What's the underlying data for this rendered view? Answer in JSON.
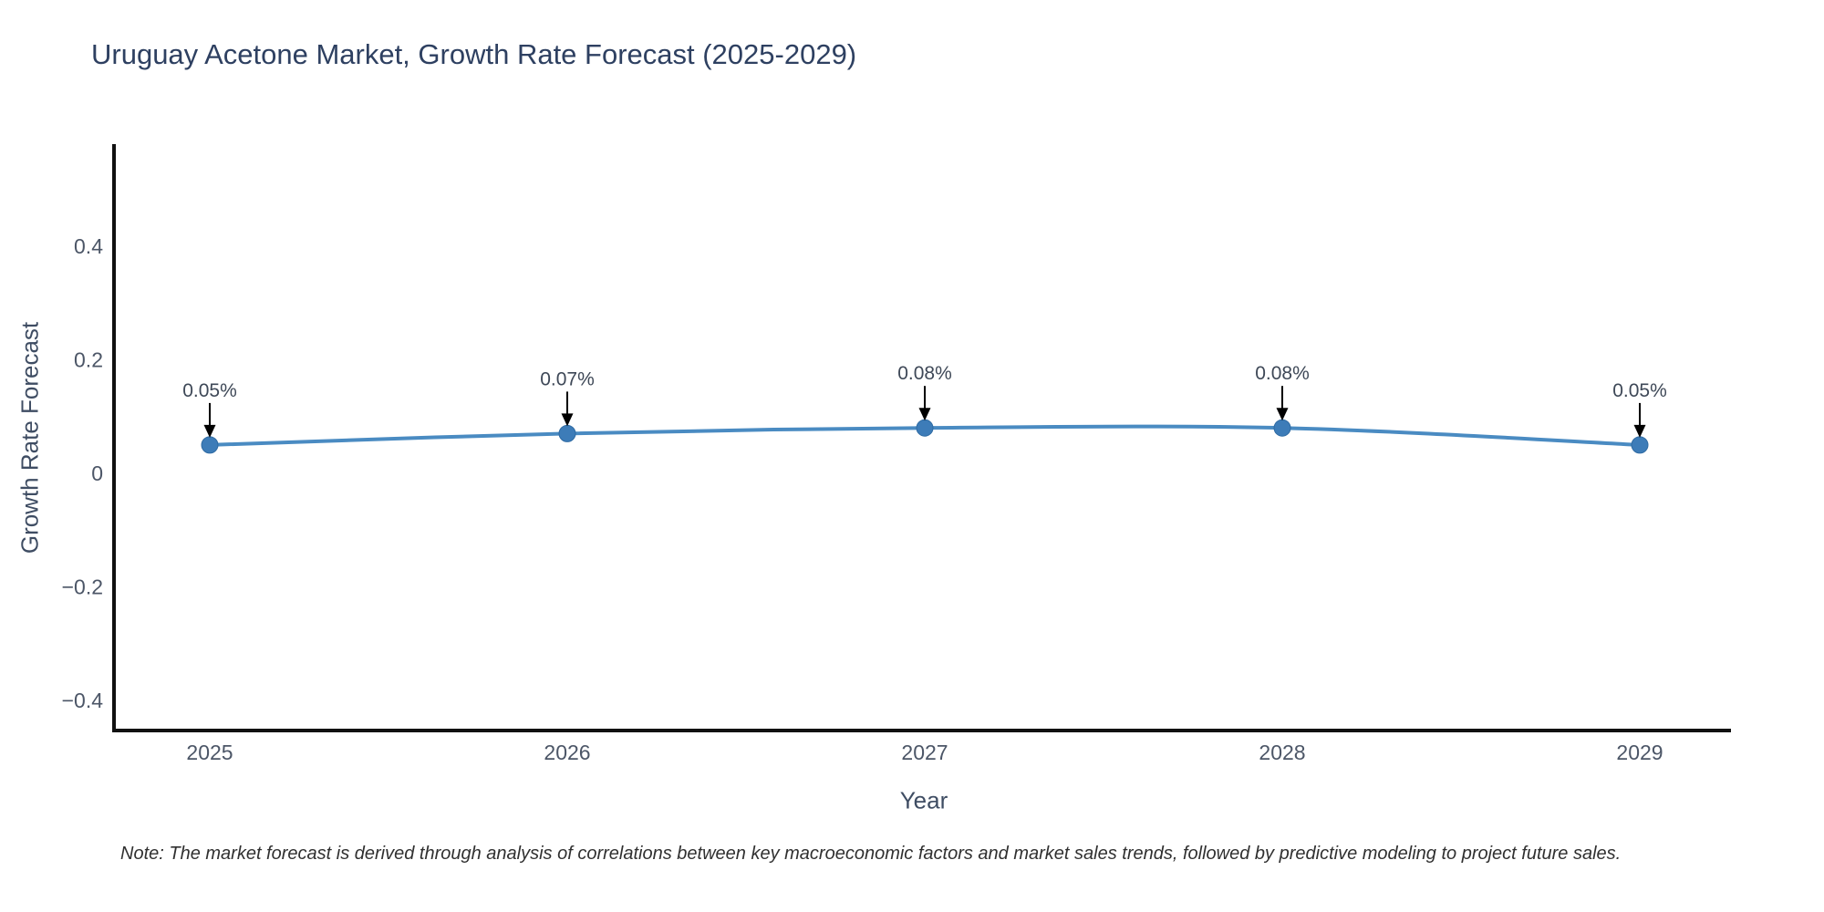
{
  "chart_data": {
    "type": "line",
    "title": "Uruguay Acetone Market, Growth Rate Forecast (2025-2029)",
    "xlabel": "Year",
    "ylabel": "Growth Rate Forecast",
    "x": [
      2025,
      2026,
      2027,
      2028,
      2029
    ],
    "y": [
      0.05,
      0.07,
      0.08,
      0.08,
      0.05
    ],
    "point_labels": [
      "0.05%",
      "0.07%",
      "0.08%",
      "0.08%",
      "0.05%"
    ],
    "xtick_labels": [
      "2025",
      "2026",
      "2027",
      "2028",
      "2029"
    ],
    "yticks": [
      0.4,
      0.2,
      0,
      -0.2,
      -0.4
    ],
    "ytick_labels": [
      "0.4",
      "0.2",
      "0",
      "−0.2",
      "−0.4"
    ],
    "ylim": [
      -0.45,
      0.58
    ],
    "grid": false,
    "legend": false,
    "line_color": "#4a8bc2",
    "marker_color": "#3d7cb8",
    "axis_color": "#111111",
    "annotation_color": "#000000",
    "note": "Note: The market forecast is derived through analysis of correlations between key macroeconomic factors and market sales trends, followed by predictive modeling to project future sales."
  }
}
